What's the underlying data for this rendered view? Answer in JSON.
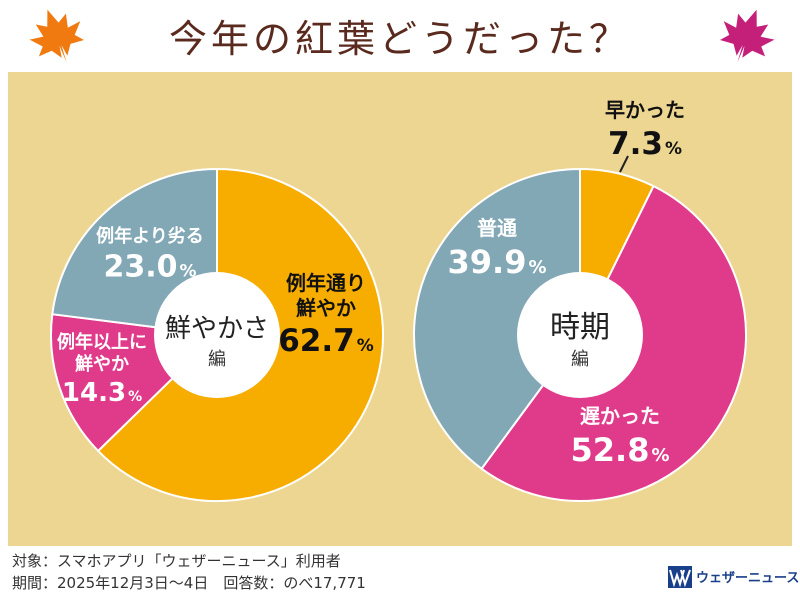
{
  "title": "今年の紅葉どうだった？",
  "colors": {
    "orange": "#f6ad00",
    "pink": "#e03b8a",
    "blue": "#82a7b5",
    "panel": "#ecd692",
    "title": "#5a2a1e",
    "maple_orange": "#f07a10",
    "maple_magenta": "#c4207a"
  },
  "icons": [
    "maple-leaf-icon",
    "maple-leaf-icon",
    "weathernews-logo-icon"
  ],
  "chart_data": [
    {
      "type": "pie",
      "variant": "donut",
      "title": "鮮やかさ",
      "subtitle": "編",
      "start": "12 o'clock, clockwise",
      "slices": [
        {
          "label": "例年通り鮮やか",
          "label_lines": [
            "例年通り",
            "鮮やか"
          ],
          "value": 62.7,
          "value_text": "62.7",
          "color": "orange"
        },
        {
          "label": "例年以上に鮮やか",
          "label_lines": [
            "例年以上に",
            "鮮やか"
          ],
          "value": 14.3,
          "value_text": "14.3",
          "color": "pink"
        },
        {
          "label": "例年より劣る",
          "label_lines": [
            "例年より劣る"
          ],
          "value": 23.0,
          "value_text": "23.0",
          "color": "blue"
        }
      ],
      "unit": "%"
    },
    {
      "type": "pie",
      "variant": "donut",
      "title": "時期",
      "subtitle": "編",
      "start": "12 o'clock, clockwise",
      "slices": [
        {
          "label": "早かった",
          "label_lines": [
            "早かった"
          ],
          "value": 7.3,
          "value_text": "7.3",
          "color": "orange"
        },
        {
          "label": "遅かった",
          "label_lines": [
            "遅かった"
          ],
          "value": 52.8,
          "value_text": "52.8",
          "color": "pink"
        },
        {
          "label": "普通",
          "label_lines": [
            "普通"
          ],
          "value": 39.9,
          "value_text": "39.9",
          "color": "blue"
        }
      ],
      "unit": "%"
    }
  ],
  "footer": {
    "line1": "対象：スマホアプリ「ウェザーニュース」利用者",
    "line2": "期間：2025年12月3日〜4日　回答数：のべ17,771"
  },
  "logo_text": "ウェザーニュース"
}
